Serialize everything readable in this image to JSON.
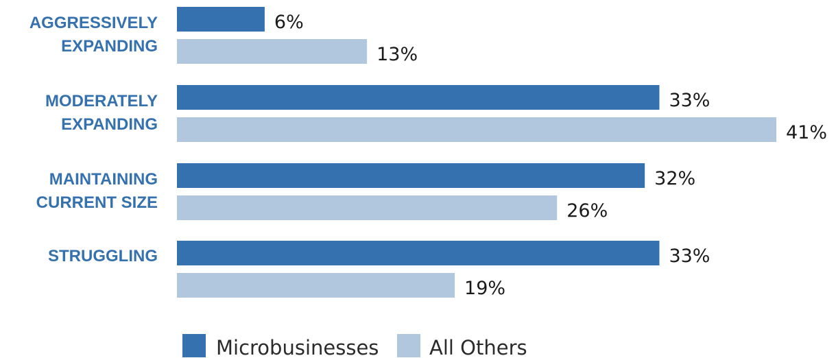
{
  "chart_data": {
    "type": "bar",
    "orientation": "horizontal",
    "categories": [
      [
        "AGGRESSIVELY",
        "EXPANDING"
      ],
      [
        "MODERATELY",
        "EXPANDING"
      ],
      [
        "MAINTAINING",
        "CURRENT SIZE"
      ],
      [
        "STRUGGLING"
      ]
    ],
    "series": [
      {
        "name": "Microbusinesses",
        "values": [
          6,
          33,
          32,
          33
        ],
        "labels": [
          "6%",
          "33%",
          "32%",
          "33%"
        ],
        "color": "#3571ae"
      },
      {
        "name": "All Others",
        "values": [
          13,
          41,
          26,
          19
        ],
        "labels": [
          "13%",
          "41%",
          "26%",
          "19%"
        ],
        "color": "#b0c7de"
      }
    ],
    "title": "",
    "xlabel": "",
    "ylabel": "",
    "xlim": [
      0,
      41
    ],
    "grid": false,
    "legend_position": "bottom",
    "category_label_color": "#3571ae",
    "value_label_color": "#1a1a1a"
  }
}
